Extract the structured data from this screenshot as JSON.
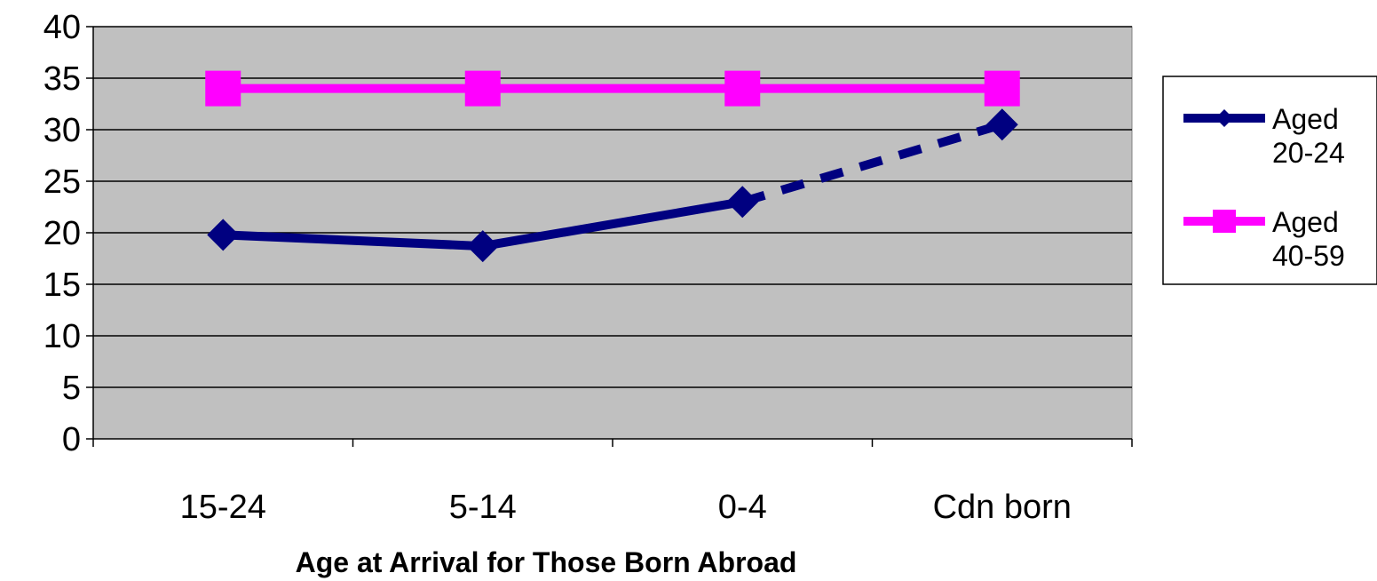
{
  "chart_data": {
    "type": "line",
    "categories": [
      "15-24",
      "5-14",
      "0-4",
      "Cdn born"
    ],
    "series": [
      {
        "name": "Aged 20-24",
        "name_lines": [
          "Aged",
          "20-24"
        ],
        "values": [
          19.8,
          18.7,
          23.0,
          30.5
        ],
        "color": "#000080",
        "marker": "diamond",
        "dashed_last_segment": true
      },
      {
        "name": "Aged 40-59",
        "name_lines": [
          "Aged",
          "40-59"
        ],
        "values": [
          34,
          34,
          34,
          34
        ],
        "color": "#ff00ff",
        "marker": "square",
        "dashed_last_segment": false
      }
    ],
    "title": "",
    "xlabel": "Age at Arrival  for Those Born Abroad",
    "ylabel": "",
    "ylim": [
      0,
      40
    ],
    "yticks": [
      0,
      5,
      10,
      15,
      20,
      25,
      30,
      35,
      40
    ],
    "grid": true,
    "plot_background": "#c0c0c0",
    "legend_position": "right"
  }
}
